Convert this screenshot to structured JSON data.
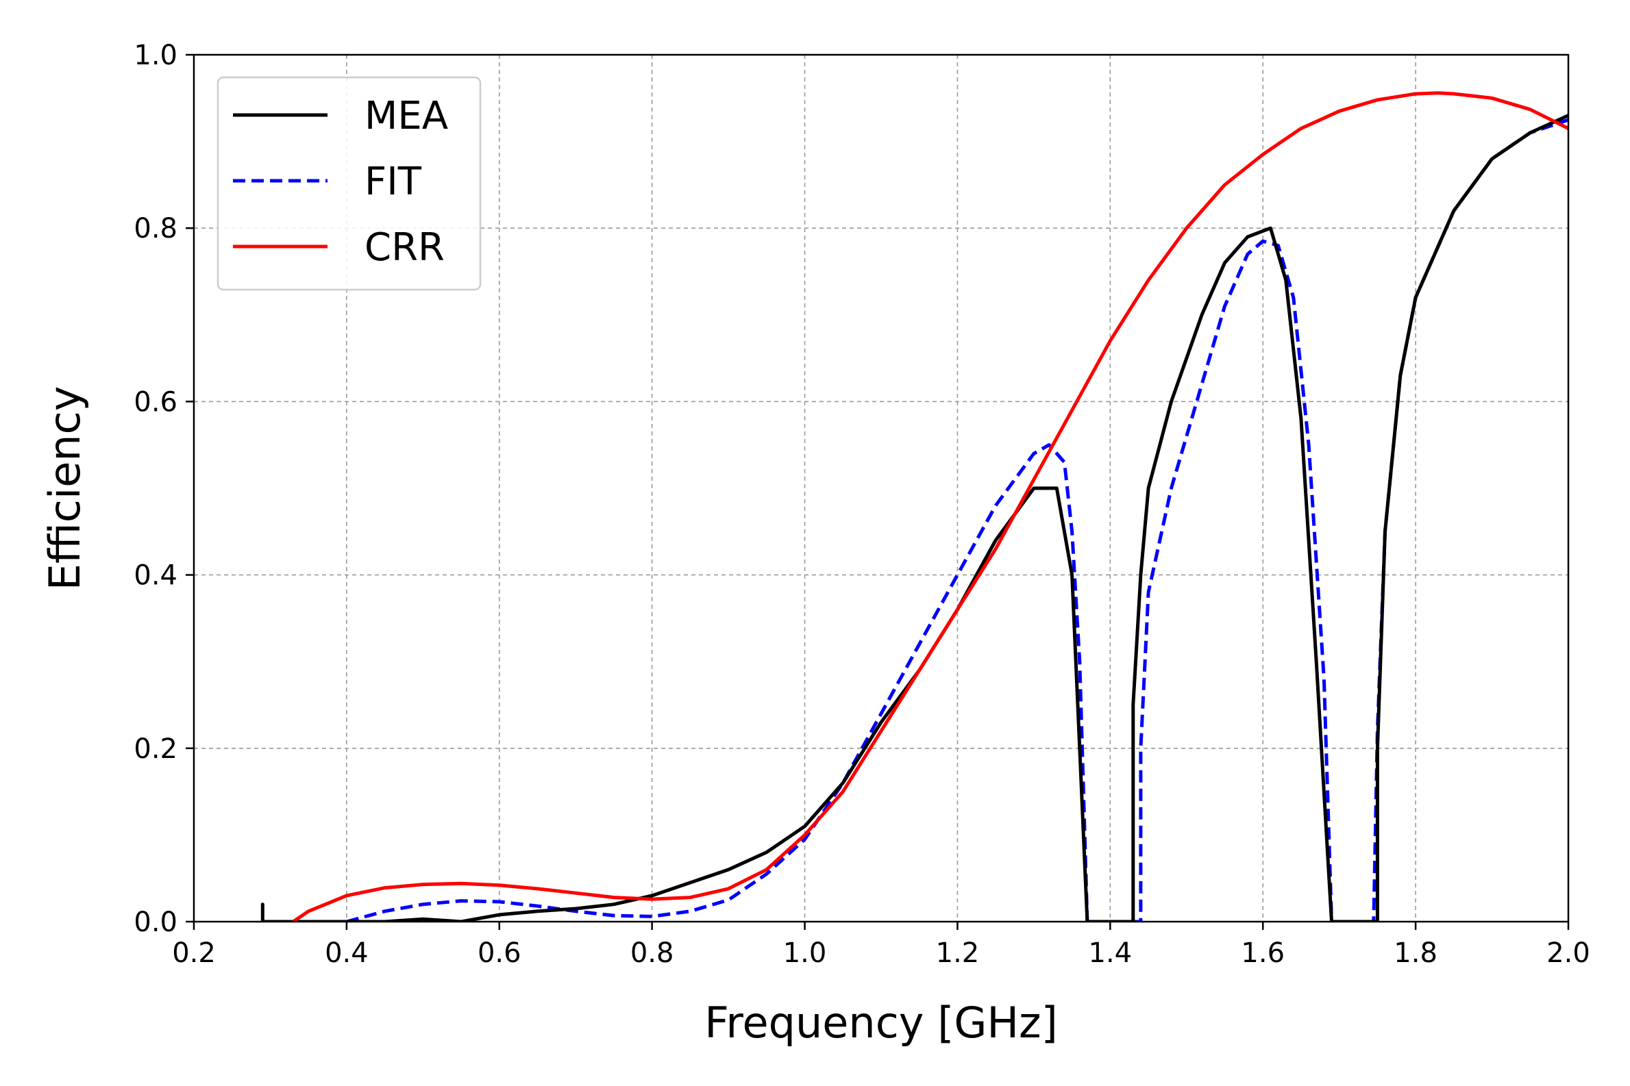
{
  "chart_data": {
    "type": "line",
    "xlabel": "Frequency [GHz]",
    "ylabel": "Efficiency",
    "xlim": [
      0.2,
      2.0
    ],
    "ylim": [
      0.0,
      1.0
    ],
    "xticks": [
      "0.2",
      "0.4",
      "0.6",
      "0.8",
      "1.0",
      "1.2",
      "1.4",
      "1.6",
      "1.8",
      "2.0"
    ],
    "yticks": [
      "0.0",
      "0.2",
      "0.4",
      "0.6",
      "0.8",
      "1.0"
    ],
    "grid": true,
    "legend_position": "top-left",
    "series": [
      {
        "name": "MEA",
        "color": "#000000",
        "style": "solid",
        "x": [
          0.29,
          0.29,
          0.29,
          0.45,
          0.5,
          0.55,
          0.6,
          0.65,
          0.7,
          0.75,
          0.8,
          0.85,
          0.9,
          0.95,
          1.0,
          1.05,
          1.1,
          1.15,
          1.2,
          1.25,
          1.3,
          1.33,
          1.35,
          1.36,
          1.37,
          1.43,
          1.43,
          1.44,
          1.45,
          1.48,
          1.52,
          1.55,
          1.58,
          1.61,
          1.63,
          1.65,
          1.67,
          1.69,
          1.69,
          1.75,
          1.75,
          1.76,
          1.78,
          1.8,
          1.85,
          1.9,
          1.95,
          2.0
        ],
        "y": [
          0.0,
          0.02,
          0.0,
          0.0,
          0.003,
          0.0,
          0.008,
          0.012,
          0.015,
          0.02,
          0.03,
          0.045,
          0.06,
          0.08,
          0.11,
          0.16,
          0.23,
          0.29,
          0.36,
          0.44,
          0.5,
          0.5,
          0.4,
          0.2,
          0.0,
          0.0,
          0.25,
          0.4,
          0.5,
          0.6,
          0.7,
          0.76,
          0.79,
          0.8,
          0.74,
          0.58,
          0.3,
          0.0,
          0.0,
          0.0,
          0.2,
          0.45,
          0.63,
          0.72,
          0.82,
          0.88,
          0.91,
          0.93
        ]
      },
      {
        "name": "FIT",
        "color": "#0000ff",
        "style": "dashed",
        "x": [
          0.4,
          0.45,
          0.5,
          0.55,
          0.6,
          0.65,
          0.7,
          0.75,
          0.8,
          0.85,
          0.9,
          0.95,
          1.0,
          1.05,
          1.1,
          1.15,
          1.2,
          1.25,
          1.3,
          1.32,
          1.34,
          1.35,
          1.36,
          1.37,
          1.44,
          1.44,
          1.45,
          1.48,
          1.52,
          1.55,
          1.58,
          1.6,
          1.62,
          1.64,
          1.66,
          1.68,
          1.69,
          1.745,
          1.75,
          1.76,
          1.78,
          1.8,
          1.85,
          1.9,
          1.95,
          2.0
        ],
        "y": [
          0.0,
          0.012,
          0.02,
          0.024,
          0.023,
          0.018,
          0.012,
          0.007,
          0.006,
          0.012,
          0.025,
          0.055,
          0.095,
          0.16,
          0.24,
          0.32,
          0.4,
          0.48,
          0.54,
          0.55,
          0.53,
          0.45,
          0.3,
          0.0,
          0.0,
          0.2,
          0.38,
          0.5,
          0.62,
          0.71,
          0.77,
          0.785,
          0.78,
          0.72,
          0.55,
          0.28,
          0.0,
          0.0,
          0.22,
          0.45,
          0.63,
          0.72,
          0.82,
          0.88,
          0.91,
          0.925
        ]
      },
      {
        "name": "CRR",
        "color": "#ff0000",
        "style": "solid",
        "x": [
          0.33,
          0.35,
          0.4,
          0.45,
          0.5,
          0.55,
          0.6,
          0.65,
          0.7,
          0.75,
          0.8,
          0.85,
          0.9,
          0.95,
          1.0,
          1.05,
          1.1,
          1.15,
          1.2,
          1.25,
          1.3,
          1.35,
          1.4,
          1.45,
          1.5,
          1.55,
          1.6,
          1.65,
          1.7,
          1.75,
          1.8,
          1.83,
          1.85,
          1.9,
          1.95,
          2.0
        ],
        "y": [
          0.0,
          0.012,
          0.03,
          0.039,
          0.043,
          0.044,
          0.042,
          0.038,
          0.033,
          0.028,
          0.026,
          0.028,
          0.038,
          0.06,
          0.1,
          0.15,
          0.22,
          0.29,
          0.36,
          0.43,
          0.51,
          0.59,
          0.67,
          0.74,
          0.8,
          0.85,
          0.885,
          0.915,
          0.935,
          0.948,
          0.955,
          0.956,
          0.955,
          0.95,
          0.937,
          0.915
        ]
      }
    ]
  }
}
